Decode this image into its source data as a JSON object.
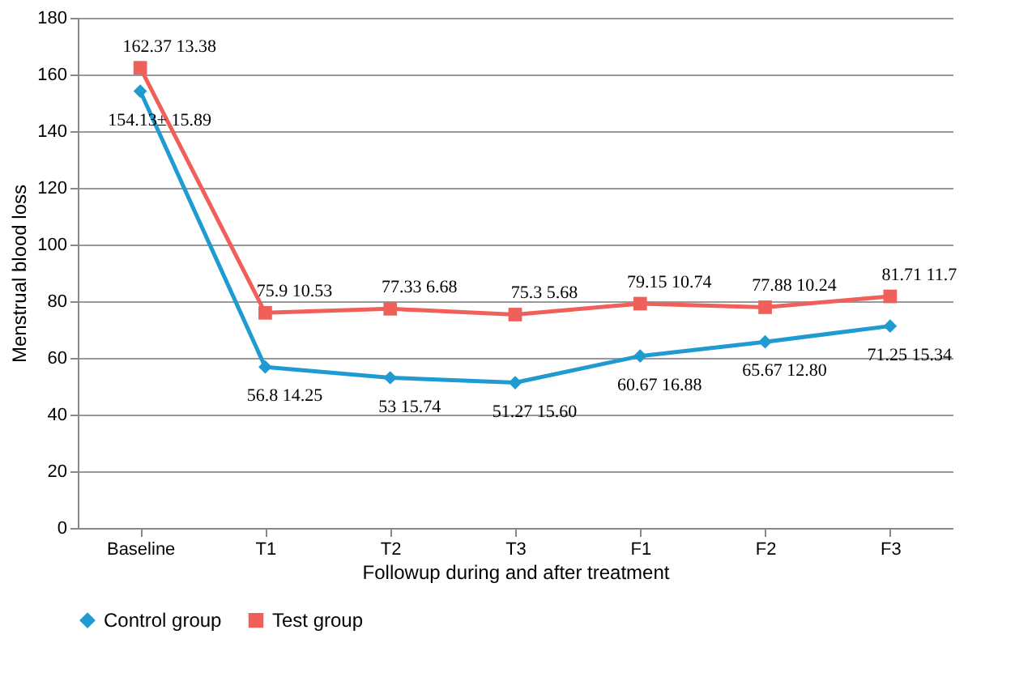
{
  "chart_data": {
    "type": "line",
    "xlabel": "Followup  during and after treatment",
    "ylabel": "Menstrual blood loss",
    "categories": [
      "Baseline",
      "T1",
      "T2",
      "T3",
      "F1",
      "F2",
      "F3"
    ],
    "series": [
      {
        "name": "Control  group",
        "color": "#1f9bd1",
        "marker": "diamond",
        "values": [
          154.13,
          56.8,
          53,
          51.27,
          60.67,
          65.67,
          71.25
        ],
        "value_labels": [
          "154.13± 15.89",
          "56.8  14.25",
          "53  15.74",
          "51.27  15.60",
          "60.67  16.88",
          "65.67  12.80",
          "71.25  15.34"
        ]
      },
      {
        "name": "Test group",
        "color": "#f0605a",
        "marker": "square",
        "values": [
          162.37,
          75.9,
          77.33,
          75.3,
          79.15,
          77.88,
          81.71
        ],
        "value_labels": [
          "162.37  13.38",
          "75.9  10.53",
          "77.33  6.68",
          "75.3  5.68",
          "79.15  10.74",
          "77.88  10.24",
          "81.71  11.7"
        ]
      }
    ],
    "ylim": [
      0,
      180
    ],
    "yticks": [
      0,
      20,
      40,
      60,
      80,
      100,
      120,
      140,
      160,
      180
    ],
    "grid": "y",
    "legend": "bottom left",
    "line_style": "solid"
  }
}
